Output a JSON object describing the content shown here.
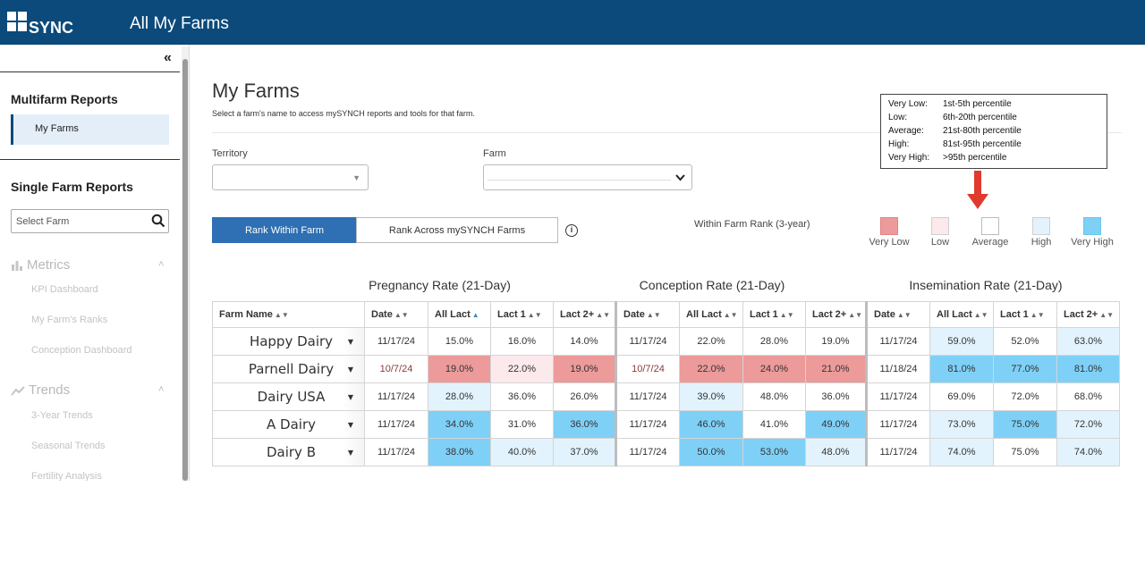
{
  "header": {
    "logo_text": "mySYNCH",
    "title": "All My Farms"
  },
  "sidebar": {
    "multifarm_heading": "Multifarm Reports",
    "active_item": "My Farms",
    "single_farm_heading": "Single Farm Reports",
    "select_farm_placeholder": "Select Farm",
    "sections": [
      {
        "label": "Metrics",
        "items": [
          "KPI Dashboard",
          "My Farm's Ranks",
          "Conception Dashboard"
        ]
      },
      {
        "label": "Trends",
        "items": [
          "3-Year Trends",
          "Seasonal Trends",
          "Fertility Analysis"
        ]
      }
    ]
  },
  "main": {
    "title": "My Farms",
    "description": "Select a farm's name to access mySYNCH reports and tools for that farm.",
    "territory_label": "Territory",
    "farm_label": "Farm",
    "rank_within": "Rank Within Farm",
    "rank_across": "Rank Across mySYNCH Farms",
    "rank_legend_label": "Within Farm Rank (3-year)",
    "legend": [
      {
        "label": "Very Low",
        "color": "#ec9a9a"
      },
      {
        "label": "Low",
        "color": "#fce9ec"
      },
      {
        "label": "Average",
        "color": "#ffffff"
      },
      {
        "label": "High",
        "color": "#e2f3fd"
      },
      {
        "label": "Very High",
        "color": "#7fd0f7"
      }
    ]
  },
  "tooltip": [
    {
      "k": "Very Low:",
      "v": "1st-5th percentile"
    },
    {
      "k": "Low:",
      "v": "6th-20th percentile"
    },
    {
      "k": "Average:",
      "v": "21st-80th percentile"
    },
    {
      "k": "High:",
      "v": "81st-95th percentile"
    },
    {
      "k": "Very High:",
      "v": ">95th percentile"
    }
  ],
  "table": {
    "groups": [
      "Pregnancy Rate (21-Day)",
      "Conception Rate (21-Day)",
      "Insemination Rate (21-Day)"
    ],
    "farm_col": "Farm Name",
    "cols": [
      "Date",
      "All Lact",
      "Lact 1",
      "Lact 2+"
    ],
    "rows": [
      {
        "farm": "Happy Dairy",
        "preg": [
          "11/17/24",
          "15.0%",
          "16.0%",
          "14.0%"
        ],
        "conc": [
          "11/17/24",
          "22.0%",
          "28.0%",
          "19.0%"
        ],
        "insem": [
          "11/17/24",
          "59.0%",
          "52.0%",
          "63.0%"
        ]
      },
      {
        "farm": "Parnell Dairy",
        "preg": [
          "10/7/24",
          "19.0%",
          "22.0%",
          "19.0%"
        ],
        "conc": [
          "10/7/24",
          "22.0%",
          "24.0%",
          "21.0%"
        ],
        "insem": [
          "11/18/24",
          "81.0%",
          "77.0%",
          "81.0%"
        ]
      },
      {
        "farm": "Dairy USA",
        "preg": [
          "11/17/24",
          "28.0%",
          "36.0%",
          "26.0%"
        ],
        "conc": [
          "11/17/24",
          "39.0%",
          "48.0%",
          "36.0%"
        ],
        "insem": [
          "11/17/24",
          "69.0%",
          "72.0%",
          "68.0%"
        ]
      },
      {
        "farm": "A Dairy",
        "preg": [
          "11/17/24",
          "34.0%",
          "31.0%",
          "36.0%"
        ],
        "conc": [
          "11/17/24",
          "46.0%",
          "41.0%",
          "49.0%"
        ],
        "insem": [
          "11/17/24",
          "73.0%",
          "75.0%",
          "72.0%"
        ]
      },
      {
        "farm": "Dairy B",
        "preg": [
          "11/17/24",
          "38.0%",
          "40.0%",
          "37.0%"
        ],
        "conc": [
          "11/17/24",
          "50.0%",
          "53.0%",
          "48.0%"
        ],
        "insem": [
          "11/17/24",
          "74.0%",
          "75.0%",
          "74.0%"
        ]
      }
    ]
  }
}
